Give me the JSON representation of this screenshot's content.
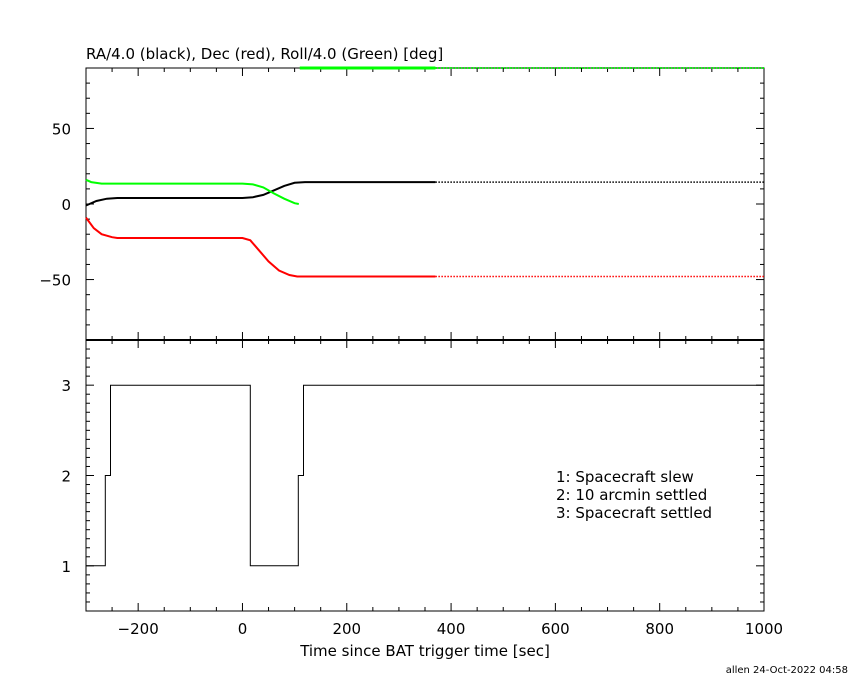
{
  "colors": {
    "ra": "#000000",
    "dec": "#ff0000",
    "roll": "#00ff00",
    "axis": "#000000"
  },
  "chart_data": [
    {
      "type": "line",
      "title": "RA/4.0 (black), Dec (red), Roll/4.0 (Green) [deg]",
      "xlim": [
        -300,
        1000
      ],
      "ylim": [
        -90,
        90
      ],
      "y_ticks": [
        -50,
        0,
        50
      ],
      "y_tick_labels": [
        "−50",
        "0",
        "50"
      ],
      "series": [
        {
          "name": "RA/4.0 (black)",
          "color": "#000000",
          "solid": {
            "x": [
              -300,
              -280,
              -260,
              -240,
              0,
              20,
              40,
              60,
              80,
              100,
              120,
              140,
              370
            ],
            "y": [
              -1,
              2,
              3.5,
              4,
              4,
              4.5,
              6,
              9,
              12,
              14,
              14.5,
              14.5,
              14.5
            ]
          },
          "dotted": {
            "x": [
              370,
              1000
            ],
            "y": [
              14.5,
              14.5
            ]
          }
        },
        {
          "name": "Dec (red)",
          "color": "#ff0000",
          "solid": {
            "x": [
              -300,
              -285,
              -270,
              -250,
              -240,
              0,
              15,
              30,
              50,
              70,
              90,
              105,
              120,
              370
            ],
            "y": [
              -9,
              -16,
              -20,
              -22,
              -22.5,
              -22.5,
              -24,
              -30,
              -38,
              -44,
              -47,
              -48,
              -48,
              -48
            ]
          },
          "dotted": {
            "x": [
              370,
              1000
            ],
            "y": [
              -48,
              -48
            ]
          }
        },
        {
          "name": "Roll/4.0 (Green)",
          "color": "#00ff00",
          "solid": {
            "x": [
              -300,
              -290,
              -270,
              -250,
              0,
              20,
              40,
              60,
              80,
              100,
              108
            ],
            "y": [
              16,
              14.5,
              13.5,
              13.5,
              13.5,
              13,
              11,
              7,
              3.5,
              0.5,
              0
            ]
          },
          "top_clip_solid": {
            "x": [
              110,
              370
            ],
            "y": [
              90,
              90
            ]
          },
          "top_clip_dotted": {
            "x": [
              370,
              1000
            ],
            "y": [
              90,
              90
            ]
          }
        }
      ]
    },
    {
      "type": "line",
      "xlabel": "Time since BAT trigger time [sec]",
      "xlim": [
        -300,
        1000
      ],
      "ylim": [
        0.5,
        3.5
      ],
      "x_ticks": [
        -200,
        0,
        200,
        400,
        600,
        800,
        1000
      ],
      "x_tick_labels": [
        "−200",
        "0",
        "200",
        "400",
        "600",
        "800",
        "1000"
      ],
      "y_ticks": [
        1,
        2,
        3
      ],
      "y_tick_labels": [
        "1",
        "2",
        "3"
      ],
      "series": [
        {
          "color": "#000000",
          "step_x": [
            -300,
            -263,
            -263,
            -253,
            -253,
            15,
            15,
            107,
            107,
            117,
            117,
            1000
          ],
          "step_y": [
            1,
            1,
            2,
            2,
            3,
            3,
            1,
            1,
            2,
            2,
            3,
            3
          ]
        }
      ],
      "annotations": [
        "1: Spacecraft slew",
        "2: 10 arcmin settled",
        "3: Spacecraft settled"
      ]
    }
  ],
  "footer": "allen 24-Oct-2022 04:58"
}
